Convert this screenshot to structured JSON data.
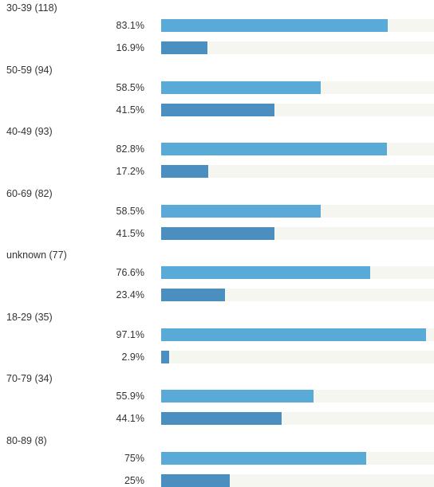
{
  "chart_data": {
    "type": "bar",
    "orientation": "horizontal",
    "groups": [
      {
        "label": "30-39 (118)",
        "bars": [
          {
            "label": "83.1%",
            "value": 83.1
          },
          {
            "label": "16.9%",
            "value": 16.9
          }
        ]
      },
      {
        "label": "50-59 (94)",
        "bars": [
          {
            "label": "58.5%",
            "value": 58.5
          },
          {
            "label": "41.5%",
            "value": 41.5
          }
        ]
      },
      {
        "label": "40-49 (93)",
        "bars": [
          {
            "label": "82.8%",
            "value": 82.8
          },
          {
            "label": "17.2%",
            "value": 17.2
          }
        ]
      },
      {
        "label": "60-69 (82)",
        "bars": [
          {
            "label": "58.5%",
            "value": 58.5
          },
          {
            "label": "41.5%",
            "value": 41.5
          }
        ]
      },
      {
        "label": "unknown (77)",
        "bars": [
          {
            "label": "76.6%",
            "value": 76.6
          },
          {
            "label": "23.4%",
            "value": 23.4
          }
        ]
      },
      {
        "label": "18-29 (35)",
        "bars": [
          {
            "label": "97.1%",
            "value": 97.1
          },
          {
            "label": "2.9%",
            "value": 2.9
          }
        ]
      },
      {
        "label": "70-79 (34)",
        "bars": [
          {
            "label": "55.9%",
            "value": 55.9
          },
          {
            "label": "44.1%",
            "value": 44.1
          }
        ]
      },
      {
        "label": "80-89 (8)",
        "bars": [
          {
            "label": "75%",
            "value": 75
          },
          {
            "label": "25%",
            "value": 25
          }
        ]
      }
    ],
    "xlim": [
      0,
      100
    ],
    "grid": false,
    "legend": "none"
  },
  "colors": {
    "bar_first": "#5aaad8",
    "bar_second": "#4a8fc0",
    "track": "#f6f6f1",
    "text": "#333333"
  }
}
